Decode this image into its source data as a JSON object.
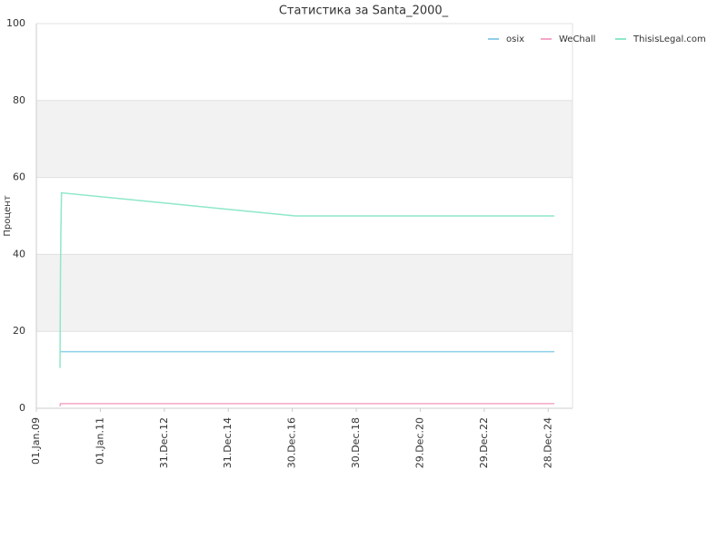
{
  "chart_data": {
    "type": "line",
    "title": "Статистика за Santa_2000_",
    "ylabel": "Процент",
    "x": [
      "2009-09-28",
      "2009-10-03",
      "2009-10-08",
      "2009-10-15",
      "2017-02-02",
      "2025-03-08"
    ],
    "series": [
      {
        "name": "osix",
        "color": "#8ecfe8",
        "values": [
          14.7,
          14.7,
          14.7,
          14.7,
          14.7,
          14.7
        ]
      },
      {
        "name": "WeChall",
        "color": "#f4a6c8",
        "values": [
          0.5,
          1.2,
          1.2,
          1.2,
          1.2,
          1.2
        ]
      },
      {
        "name": "ThisisLegal.com",
        "color": "#8ee8c8",
        "values": [
          10.5,
          35,
          46,
          56,
          50,
          50
        ]
      }
    ],
    "xlim": [
      "2009-01-01",
      "2025-10-01"
    ],
    "xticks": [
      {
        "value": "2009-01-01",
        "label": "01.Jan.09"
      },
      {
        "value": "2011-01-01",
        "label": "01.Jan.11"
      },
      {
        "value": "2012-12-31",
        "label": "31.Dec.12"
      },
      {
        "value": "2014-12-31",
        "label": "31.Dec.14"
      },
      {
        "value": "2016-12-30",
        "label": "30.Dec.16"
      },
      {
        "value": "2018-12-30",
        "label": "30.Dec.18"
      },
      {
        "value": "2020-12-29",
        "label": "29.Dec.20"
      },
      {
        "value": "2022-12-29",
        "label": "29.Dec.22"
      },
      {
        "value": "2024-12-28",
        "label": "28.Dec.24"
      }
    ],
    "ylim": [
      0,
      100
    ],
    "yticks": [
      0,
      20,
      40,
      60,
      80,
      100
    ],
    "grid": true,
    "legend": "top-right"
  }
}
